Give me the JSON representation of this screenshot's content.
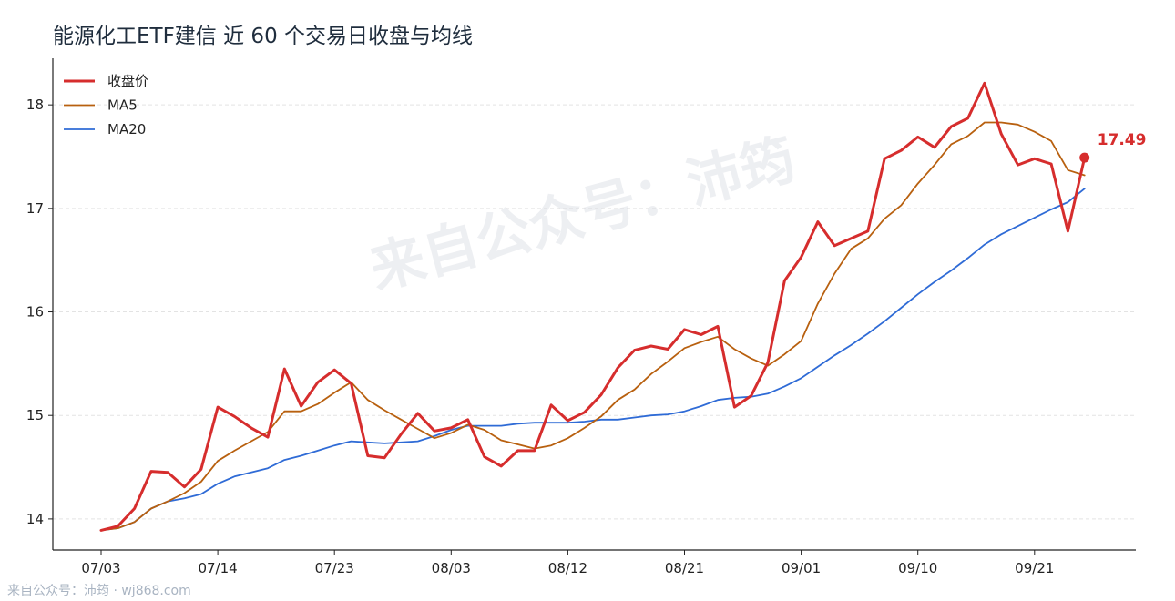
{
  "title": "能源化工ETF建信 近 60 个交易日收盘与均线",
  "watermark": "来自公众号：沛筠",
  "footer": "来自公众号：沛筠 · wj868.com",
  "last_value_label": "17.49",
  "colors": {
    "close": "#d62d2d",
    "ma5": "#b8600f",
    "ma20": "#2f6bd6",
    "grid": "#e3e3e3",
    "axis": "#222222"
  },
  "chart_data": {
    "type": "line",
    "title": "能源化工ETF建信 近 60 个交易日收盘与均线",
    "x_tick_labels": [
      "07/03",
      "07/14",
      "07/23",
      "08/03",
      "08/12",
      "08/21",
      "09/01",
      "09/10",
      "09/21"
    ],
    "x_tick_indices": [
      0,
      7,
      14,
      21,
      28,
      35,
      42,
      49,
      56
    ],
    "ylim": [
      13.7,
      18.45
    ],
    "yticks": [
      14,
      15,
      16,
      17,
      18
    ],
    "grid": "horizontal-dashed",
    "legend_position": "top-left",
    "series": [
      {
        "name": "收盘价",
        "color": "#d62d2d",
        "values": [
          13.89,
          13.93,
          14.1,
          14.46,
          14.45,
          14.31,
          14.48,
          15.08,
          14.99,
          14.88,
          14.79,
          15.45,
          15.09,
          15.32,
          15.44,
          15.31,
          14.61,
          14.59,
          14.82,
          15.02,
          14.85,
          14.88,
          14.96,
          14.6,
          14.51,
          14.66,
          14.66,
          15.1,
          14.95,
          15.03,
          15.2,
          15.46,
          15.63,
          15.67,
          15.64,
          15.83,
          15.78,
          15.86,
          15.08,
          15.19,
          15.51,
          16.3,
          16.53,
          16.87,
          16.64,
          16.71,
          16.78,
          17.48,
          17.56,
          17.69,
          17.59,
          17.79,
          17.87,
          18.21,
          17.72,
          17.42,
          17.48,
          17.43,
          16.78,
          17.49
        ]
      },
      {
        "name": "MA5",
        "color": "#b8600f",
        "values": [
          13.89,
          13.91,
          13.97,
          14.1,
          14.17,
          14.25,
          14.36,
          14.56,
          14.66,
          14.75,
          14.84,
          15.04,
          15.04,
          15.11,
          15.22,
          15.32,
          15.15,
          15.05,
          14.96,
          14.87,
          14.78,
          14.83,
          14.91,
          14.86,
          14.76,
          14.72,
          14.68,
          14.71,
          14.78,
          14.88,
          14.99,
          15.15,
          15.25,
          15.4,
          15.52,
          15.65,
          15.71,
          15.76,
          15.64,
          15.55,
          15.48,
          15.59,
          15.72,
          16.08,
          16.37,
          16.61,
          16.71,
          16.9,
          17.03,
          17.24,
          17.42,
          17.62,
          17.7,
          17.83,
          17.83,
          17.81,
          17.74,
          17.65,
          17.37,
          17.32
        ]
      },
      {
        "name": "MA20",
        "color": "#2f6bd6",
        "values": [
          13.89,
          13.91,
          13.97,
          14.1,
          14.17,
          14.2,
          14.24,
          14.34,
          14.41,
          14.45,
          14.49,
          14.57,
          14.61,
          14.66,
          14.71,
          14.75,
          14.74,
          14.73,
          14.74,
          14.75,
          14.8,
          14.86,
          14.9,
          14.9,
          14.9,
          14.92,
          14.93,
          14.93,
          14.93,
          14.94,
          14.96,
          14.96,
          14.98,
          15.0,
          15.01,
          15.04,
          15.09,
          15.15,
          15.17,
          15.18,
          15.21,
          15.28,
          15.36,
          15.47,
          15.58,
          15.68,
          15.79,
          15.91,
          16.04,
          16.17,
          16.29,
          16.4,
          16.52,
          16.65,
          16.75,
          16.83,
          16.91,
          16.99,
          17.06,
          17.19
        ]
      }
    ]
  }
}
